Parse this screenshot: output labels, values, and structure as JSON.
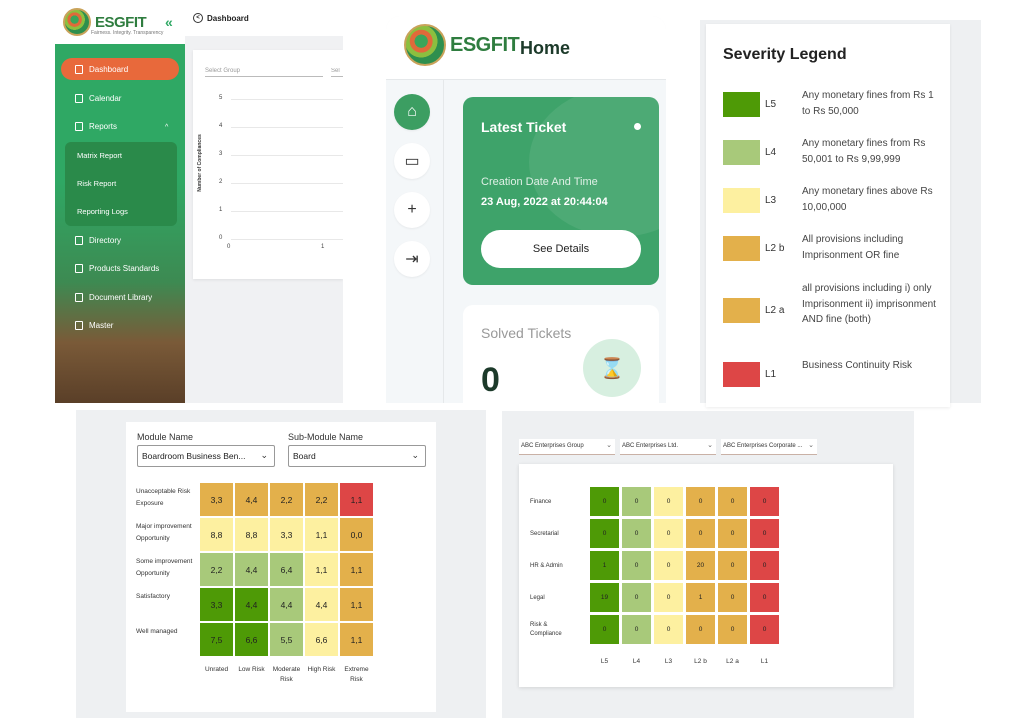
{
  "colors": {
    "L5": "#4e9a06",
    "L4": "#a8c97a",
    "L3": "#fdf0a0",
    "L2b": "#e3b04b",
    "L2a": "#e3b04b",
    "L1": "#dd4646",
    "brand_green": "#2fa864",
    "brand_orange": "#e8693b"
  },
  "dashboard": {
    "logo": "ESGFIT",
    "logo_tagline": "Fairness. Integrity. Transparency",
    "header_title": "Dashboard",
    "sidebar": [
      {
        "label": "Dashboard",
        "icon": "dashboard-icon",
        "active": true
      },
      {
        "label": "Calendar",
        "icon": "calendar-icon"
      },
      {
        "label": "Reports",
        "icon": "reports-icon"
      },
      {
        "label": "Directory",
        "icon": "directory-icon"
      },
      {
        "label": "Products Standards",
        "icon": "products-icon"
      },
      {
        "label": "Document Library",
        "icon": "library-icon"
      },
      {
        "label": "Master",
        "icon": "master-icon"
      }
    ],
    "reports_submenu": [
      "Matrix Report",
      "Risk Report",
      "Reporting Logs"
    ],
    "select_group_placeholder": "Select Group",
    "select_second_placeholder": "Sel",
    "chart_ylabel": "Number of Compliances",
    "y_ticks": [
      "5",
      "4",
      "3",
      "2",
      "1",
      "0"
    ],
    "x_ticks": [
      "0",
      "1"
    ]
  },
  "mobile": {
    "logo": "ESGFIT",
    "logo_tagline": "Fairness. Integrity. Transparency",
    "title": "Home",
    "latest_ticket": {
      "title": "Latest Ticket",
      "label": "Creation Date And Time",
      "datetime": "23 Aug, 2022 at 20:44:04",
      "button": "See Details"
    },
    "solved": {
      "title": "Solved Tickets",
      "count": "0"
    }
  },
  "legend": {
    "title": "Severity Legend",
    "items": [
      {
        "level": "L5",
        "color": "#4e9a06",
        "desc": "Any monetary fines from Rs 1 to Rs 50,000"
      },
      {
        "level": "L4",
        "color": "#a8c97a",
        "desc": "Any monetary fines from Rs 50,001 to Rs 9,99,999"
      },
      {
        "level": "L3",
        "color": "#fdf0a0",
        "desc": "Any monetary fines above Rs 10,00,000"
      },
      {
        "level": "L2 b",
        "color": "#e3b04b",
        "desc": "All provisions including Imprisonment OR fine"
      },
      {
        "level": "L2 a",
        "color": "#e3b04b",
        "desc": "all provisions including i) only Imprisonment ii) imprisonment AND fine (both)"
      },
      {
        "level": "L1",
        "color": "#dd4646",
        "desc": "Business Continuity Risk"
      }
    ]
  },
  "risk_matrix": {
    "module_label": "Module Name",
    "module_value": "Boardroom Business Ben...",
    "submodule_label": "Sub-Module Name",
    "submodule_value": "Board",
    "rows": [
      "Unacceptable Risk Exposure",
      "Major improvement Opportunity",
      "Some improvement Opportunity",
      "Satisfactory",
      "Well managed"
    ],
    "cols": [
      "Unrated",
      "Low Risk",
      "Moderate Risk",
      "High Risk",
      "Extreme Risk"
    ],
    "cells": [
      [
        "3,3",
        "4,4",
        "2,2",
        "2,2",
        "1,1"
      ],
      [
        "8,8",
        "8,8",
        "3,3",
        "1,1",
        "0,0"
      ],
      [
        "2,2",
        "4,4",
        "6,4",
        "1,1",
        "1,1"
      ],
      [
        "3,3",
        "4,4",
        "4,4",
        "4,4",
        "1,1"
      ],
      [
        "7,5",
        "6,6",
        "5,5",
        "6,6",
        "1,1"
      ]
    ],
    "cell_colors": [
      [
        "#e3b04b",
        "#e3b04b",
        "#e3b04b",
        "#e3b04b",
        "#dd4646"
      ],
      [
        "#fdf0a0",
        "#fdf0a0",
        "#fdf0a0",
        "#fdf0a0",
        "#e3b04b"
      ],
      [
        "#a8c97a",
        "#a8c97a",
        "#a8c97a",
        "#fdf0a0",
        "#e3b04b"
      ],
      [
        "#4e9a06",
        "#4e9a06",
        "#a8c97a",
        "#fdf0a0",
        "#e3b04b"
      ],
      [
        "#4e9a06",
        "#4e9a06",
        "#a8c97a",
        "#fdf0a0",
        "#e3b04b"
      ]
    ]
  },
  "dept_matrix": {
    "filters": [
      "ABC Enterprises Group",
      "ABC Enterprises Ltd.",
      "ABC Enterprises Corporate ..."
    ],
    "rows": [
      "Finance",
      "Secretarial",
      "HR & Admin",
      "Legal",
      "Risk & Compliance"
    ],
    "cols": [
      "L5",
      "L4",
      "L3",
      "L2 b",
      "L2 a",
      "L1"
    ],
    "cells": [
      [
        "0",
        "0",
        "0",
        "0",
        "0",
        "0"
      ],
      [
        "0",
        "0",
        "0",
        "0",
        "0",
        "0"
      ],
      [
        "1",
        "0",
        "0",
        "20",
        "0",
        "0"
      ],
      [
        "19",
        "0",
        "0",
        "1",
        "0",
        "0"
      ],
      [
        "0",
        "0",
        "0",
        "0",
        "0",
        "0"
      ]
    ],
    "col_colors": [
      "#4e9a06",
      "#a8c97a",
      "#fdf0a0",
      "#e3b04b",
      "#e3b04b",
      "#dd4646"
    ]
  }
}
